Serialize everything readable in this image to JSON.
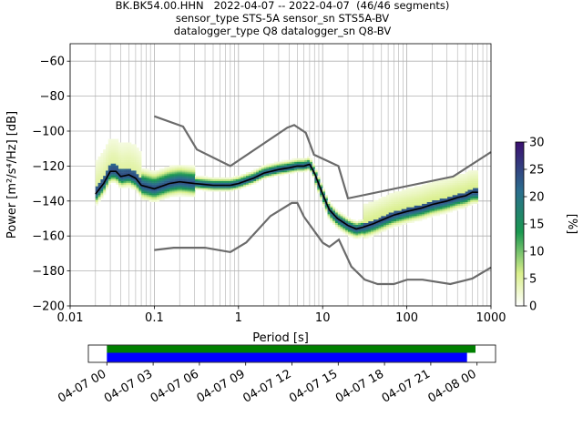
{
  "header": {
    "line1": "BK.BK54.00.HHN   2022-04-07 -- 2022-04-07  (46/46 segments)",
    "line2": "sensor_type STS-5A sensor_sn STS5A-BV",
    "line3": "datalogger_type Q8 datalogger_sn Q8-BV"
  },
  "chart_data": [
    {
      "type": "heatmap",
      "description_of_axes": "probabilistic power spectral density",
      "xlabel": "Period [s]",
      "ylabel": "Power [m²/s⁴/Hz] [dB]",
      "xscale": "log",
      "xlim": [
        0.01,
        1000
      ],
      "ylim": [
        -200,
        -50
      ],
      "xticks": [
        "0.01",
        "0.1",
        "1",
        "10",
        "100",
        "1000"
      ],
      "yticks": [
        -60,
        -80,
        -100,
        -120,
        -140,
        -160,
        -180,
        -200
      ],
      "grid": true,
      "colorbar": {
        "label": "[%]",
        "min": 0,
        "max": 30,
        "ticks": [
          0,
          5,
          10,
          15,
          20,
          25,
          30
        ],
        "colors": [
          "#ffffff",
          "#d9ef8b",
          "#1a9850",
          "#2b6e8e",
          "#3b0f70"
        ]
      },
      "mode_curve": {
        "period": [
          0.02,
          0.025,
          0.03,
          0.035,
          0.04,
          0.05,
          0.06,
          0.07,
          0.1,
          0.15,
          0.2,
          0.3,
          0.5,
          0.8,
          1.0,
          1.5,
          2,
          3,
          4,
          5,
          6,
          7,
          8,
          10,
          12,
          15,
          20,
          25,
          30,
          40,
          50,
          70,
          100,
          150,
          200,
          300,
          400,
          500,
          600,
          700
        ],
        "power": [
          -136,
          -130,
          -123,
          -123,
          -126,
          -125,
          -127,
          -131,
          -133,
          -130,
          -129,
          -130,
          -131,
          -131,
          -130,
          -127,
          -124,
          -122,
          -121,
          -120,
          -120,
          -119,
          -124,
          -136,
          -145,
          -150,
          -154,
          -156,
          -155,
          -153,
          -151,
          -148,
          -146,
          -144,
          -142,
          -140,
          -138,
          -137,
          -135,
          -135
        ]
      },
      "high_noise_model": {
        "period": [
          0.1,
          0.22,
          0.32,
          0.8,
          3.8,
          4.6,
          6.3,
          7.9,
          15.4,
          20,
          354.8,
          1000
        ],
        "power": [
          -91.5,
          -97.4,
          -110.5,
          -120,
          -98,
          -96.5,
          -101,
          -113.5,
          -120,
          -138.5,
          -126,
          -112
        ]
      },
      "low_noise_model": {
        "period": [
          0.1,
          0.17,
          0.4,
          0.8,
          1.24,
          2.4,
          4.3,
          5,
          6,
          10,
          12,
          15.6,
          21.9,
          31.6,
          45,
          70,
          101,
          154,
          328,
          600,
          1000
        ],
        "power": [
          -168,
          -166.7,
          -166.7,
          -169.2,
          -163.7,
          -148.6,
          -141.1,
          -141.1,
          -149,
          -163.8,
          -166.2,
          -162.1,
          -177.5,
          -185,
          -187.5,
          -187.5,
          -185,
          -185,
          -187.5,
          -184.4,
          -178
        ]
      }
    },
    {
      "type": "timeline",
      "xticks": [
        "04-07 00",
        "04-07 03",
        "04-07 06",
        "04-07 09",
        "04-07 12",
        "04-07 15",
        "04-07 18",
        "04-07 21",
        "04-08 00"
      ],
      "xlim_hours": [
        -1.2,
        25.2
      ],
      "data_coverage_hours": [
        0,
        23.9
      ],
      "used_coverage_hours": [
        0,
        23.35
      ],
      "colors": {
        "data": "#008000",
        "used": "#0000ff"
      }
    }
  ]
}
